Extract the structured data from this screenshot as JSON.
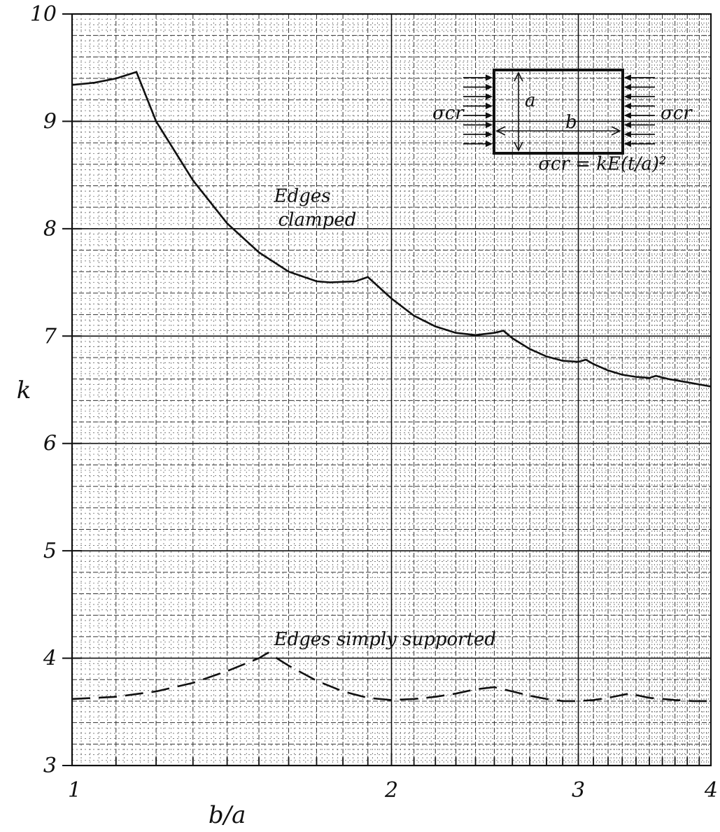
{
  "chart_data": {
    "type": "line",
    "x_axis": {
      "label": "b/a",
      "scale": "log",
      "range": [
        1,
        4
      ],
      "ticks": [
        1,
        2,
        3,
        4
      ],
      "tick_labels": [
        "1",
        "2",
        "3",
        "4"
      ]
    },
    "y_axis": {
      "label": "k",
      "scale": "linear",
      "range": [
        3,
        10
      ],
      "ticks": [
        3,
        4,
        5,
        6,
        7,
        8,
        9,
        10
      ],
      "tick_labels": [
        "3",
        "4",
        "5",
        "6",
        "7",
        "8",
        "9",
        "10"
      ]
    },
    "grid": true,
    "series": [
      {
        "name": "Edges clamped",
        "style": "solid",
        "points": [
          [
            1.0,
            9.34
          ],
          [
            1.05,
            9.36
          ],
          [
            1.1,
            9.4
          ],
          [
            1.15,
            9.46
          ],
          [
            1.2,
            9.0
          ],
          [
            1.3,
            8.45
          ],
          [
            1.4,
            8.05
          ],
          [
            1.5,
            7.78
          ],
          [
            1.6,
            7.6
          ],
          [
            1.7,
            7.51
          ],
          [
            1.75,
            7.5
          ],
          [
            1.85,
            7.51
          ],
          [
            1.9,
            7.55
          ],
          [
            2.0,
            7.35
          ],
          [
            2.1,
            7.19
          ],
          [
            2.2,
            7.09
          ],
          [
            2.3,
            7.03
          ],
          [
            2.4,
            7.01
          ],
          [
            2.5,
            7.03
          ],
          [
            2.55,
            7.05
          ],
          [
            2.6,
            6.98
          ],
          [
            2.7,
            6.88
          ],
          [
            2.8,
            6.81
          ],
          [
            2.9,
            6.77
          ],
          [
            3.0,
            6.76
          ],
          [
            3.05,
            6.78
          ],
          [
            3.1,
            6.74
          ],
          [
            3.2,
            6.68
          ],
          [
            3.3,
            6.64
          ],
          [
            3.4,
            6.62
          ],
          [
            3.5,
            6.61
          ],
          [
            3.55,
            6.63
          ],
          [
            3.65,
            6.6
          ],
          [
            3.8,
            6.57
          ],
          [
            4.0,
            6.53
          ]
        ]
      },
      {
        "name": "Edges simply supported",
        "style": "dashed",
        "points": [
          [
            1.0,
            3.62
          ],
          [
            1.1,
            3.64
          ],
          [
            1.2,
            3.69
          ],
          [
            1.3,
            3.77
          ],
          [
            1.4,
            3.88
          ],
          [
            1.5,
            4.0
          ],
          [
            1.53,
            4.05
          ],
          [
            1.6,
            3.93
          ],
          [
            1.7,
            3.79
          ],
          [
            1.8,
            3.69
          ],
          [
            1.9,
            3.63
          ],
          [
            2.0,
            3.61
          ],
          [
            2.1,
            3.62
          ],
          [
            2.2,
            3.64
          ],
          [
            2.3,
            3.67
          ],
          [
            2.4,
            3.71
          ],
          [
            2.5,
            3.73
          ],
          [
            2.6,
            3.69
          ],
          [
            2.7,
            3.65
          ],
          [
            2.8,
            3.62
          ],
          [
            2.9,
            3.6
          ],
          [
            3.0,
            3.6
          ],
          [
            3.1,
            3.61
          ],
          [
            3.2,
            3.63
          ],
          [
            3.35,
            3.67
          ],
          [
            3.5,
            3.63
          ],
          [
            3.7,
            3.61
          ],
          [
            3.85,
            3.6
          ],
          [
            4.0,
            3.6
          ]
        ]
      }
    ],
    "annotations": [
      {
        "text_lines": [
          "Edges",
          "clamped"
        ],
        "at": [
          1.55,
          8.25
        ]
      },
      {
        "text_lines": [
          "Edges simply supported"
        ],
        "at": [
          1.55,
          4.12
        ]
      },
      {
        "text_lines": [
          "σcr = kE(t/a)²"
        ],
        "at": [
          2.75,
          8.55
        ]
      }
    ],
    "inset": {
      "description": "rectangular plate under uniaxial compression",
      "labels": {
        "left_load": "σcr",
        "right_load": "σcr",
        "height": "a",
        "width": "b"
      }
    }
  }
}
